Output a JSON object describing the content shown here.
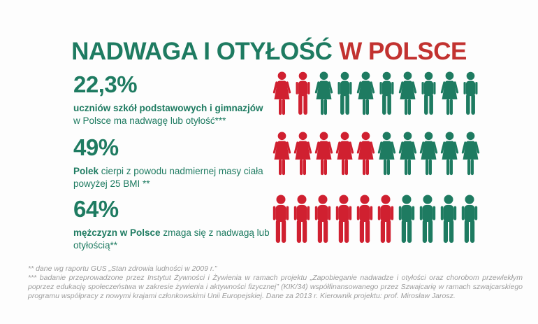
{
  "title": {
    "part1": "NADWAGA I OTYŁOŚĆ",
    "part2": "W POLSCE"
  },
  "colors": {
    "teal": "#1e7b61",
    "red": "#d02030",
    "title_red": "#c23230",
    "footnote_gray": "#9c9c9c",
    "background": "#fdfdfd"
  },
  "stats": [
    {
      "value": "22,3%",
      "description_bold": "uczniów szkół podstawowych i gimnazjów",
      "description_rest": " w Polsce ma nadwagę lub otyłość***",
      "icons": [
        {
          "type": "female",
          "color": "red"
        },
        {
          "type": "male",
          "color": "red"
        },
        {
          "type": "female",
          "color": "teal"
        },
        {
          "type": "male",
          "color": "teal"
        },
        {
          "type": "female",
          "color": "teal"
        },
        {
          "type": "male",
          "color": "teal"
        },
        {
          "type": "female",
          "color": "teal"
        },
        {
          "type": "male",
          "color": "teal"
        },
        {
          "type": "female",
          "color": "teal"
        },
        {
          "type": "male",
          "color": "teal"
        }
      ]
    },
    {
      "value": "49%",
      "description_bold": "Polek",
      "description_rest": " cierpi z powodu nadmiernej masy ciała powyżej 25 BMI **",
      "icons": [
        {
          "type": "female",
          "color": "red"
        },
        {
          "type": "female",
          "color": "red"
        },
        {
          "type": "female",
          "color": "red"
        },
        {
          "type": "female",
          "color": "red"
        },
        {
          "type": "female",
          "color": "red"
        },
        {
          "type": "female",
          "color": "teal"
        },
        {
          "type": "female",
          "color": "teal"
        },
        {
          "type": "female",
          "color": "teal"
        },
        {
          "type": "female",
          "color": "teal"
        },
        {
          "type": "female",
          "color": "teal"
        }
      ]
    },
    {
      "value": "64%",
      "description_bold": "mężczyzn w Polsce",
      "description_rest": " zmaga się z nadwagą lub otyłością**",
      "icons": [
        {
          "type": "male",
          "color": "red"
        },
        {
          "type": "male",
          "color": "red"
        },
        {
          "type": "male",
          "color": "red"
        },
        {
          "type": "male",
          "color": "red"
        },
        {
          "type": "male",
          "color": "red"
        },
        {
          "type": "male",
          "color": "red"
        },
        {
          "type": "male",
          "color": "teal"
        },
        {
          "type": "male",
          "color": "teal"
        },
        {
          "type": "male",
          "color": "teal"
        },
        {
          "type": "male",
          "color": "teal"
        }
      ]
    }
  ],
  "footnotes": [
    "** dane wg raportu GUS „Stan zdrowia ludności w 2009 r.”",
    "*** badanie przeprowadzone przez Instytut Żywności i Żywienia w ramach projektu „Zapobieganie nadwadze i otyłości oraz chorobom przewlekłym poprzez edukację społeczeństwa w zakresie żywienia i aktywności fizycznej” (KIK/34) współfinansowanego przez Szwajcarię w ramach szwajcarskiego programu współpracy z nowymi krajami członkowskimi Unii Europejskiej. Dane za 2013 r. Kierownik projektu: prof. Mirosław Jarosz."
  ],
  "chart_data": {
    "type": "bar",
    "variant": "pictogram",
    "title": "NADWAGA I OTYŁOŚĆ W POLSCE",
    "categories": [
      "uczniowie szkół podstawowych i gimnazjów w Polsce z nadwagą lub otyłością",
      "Polki cierpiące z powodu nadmiernej masy ciała powyżej 25 BMI",
      "mężczyźni w Polsce zmagający się z nadwagą lub otyłością"
    ],
    "values": [
      22.3,
      49,
      64
    ],
    "units": "%",
    "value_labels": [
      "22,3%",
      "49%",
      "64%"
    ],
    "pictogram": {
      "icons_per_row": 10,
      "highlighted_icons_per_row": [
        2,
        5,
        6
      ],
      "icon_types_per_row": [
        "alternating female/male",
        "female only",
        "male only"
      ],
      "highlight_color": "#d02030",
      "base_color": "#1e7b61"
    },
    "legend": "none",
    "grid": false
  }
}
